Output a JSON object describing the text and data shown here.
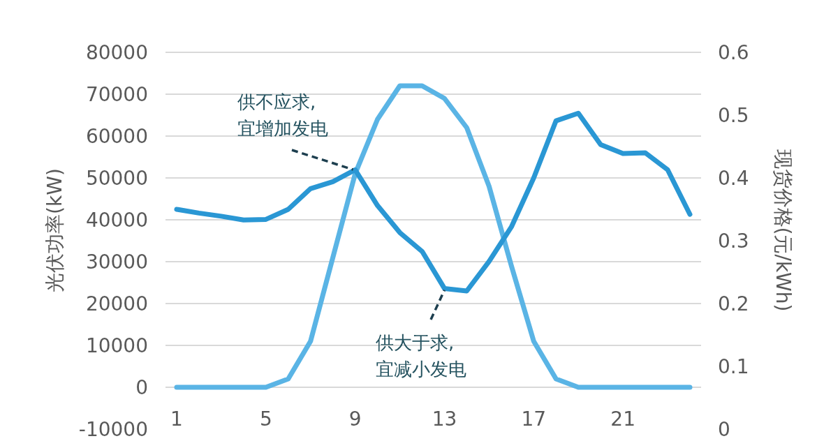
{
  "chart_data": {
    "type": "line",
    "ylabel": "光伏功率(kW)",
    "y2label": "现货价格(元/kWh)",
    "x": [
      1,
      2,
      3,
      4,
      5,
      6,
      7,
      8,
      9,
      10,
      11,
      12,
      13,
      14,
      15,
      16,
      17,
      18,
      19,
      20,
      21,
      22,
      23,
      24
    ],
    "xlim": [
      0.5,
      24.5
    ],
    "xticks": [
      1,
      5,
      9,
      13,
      17,
      21
    ],
    "ylim": [
      -10000,
      80000
    ],
    "yticks": [
      -10000,
      0,
      10000,
      20000,
      30000,
      40000,
      50000,
      60000,
      70000,
      80000
    ],
    "y2lim": [
      0,
      0.6
    ],
    "y2ticks": [
      0,
      0.1,
      0.2,
      0.3,
      0.4,
      0.5,
      0.6
    ],
    "grid": "y",
    "marker": "none",
    "line_style": "solid",
    "series": [
      {
        "color": "#5ab4e5",
        "values": [
          0,
          0,
          0,
          0,
          0,
          2000,
          11000,
          31000,
          51000,
          64000,
          72000,
          72000,
          69000,
          62000,
          48000,
          29000,
          11000,
          2000,
          0,
          0,
          0,
          0,
          0,
          0
        ]
      },
      {
        "color": "#2a97d4",
        "axis": "y2",
        "values": [
          0.35,
          0.344,
          0.339,
          0.333,
          0.334,
          0.35,
          0.383,
          0.394,
          0.413,
          0.356,
          0.313,
          0.283,
          0.224,
          0.22,
          0.267,
          0.322,
          0.4,
          0.491,
          0.503,
          0.453,
          0.439,
          0.44,
          0.413,
          0.342
        ]
      }
    ],
    "annotations": [
      {
        "text": "供不应求,\n宜增加发电",
        "x": 9,
        "y": 52000
      },
      {
        "text": "供大于求,\n宜减小发电",
        "x": 13,
        "y": 23700
      }
    ]
  }
}
